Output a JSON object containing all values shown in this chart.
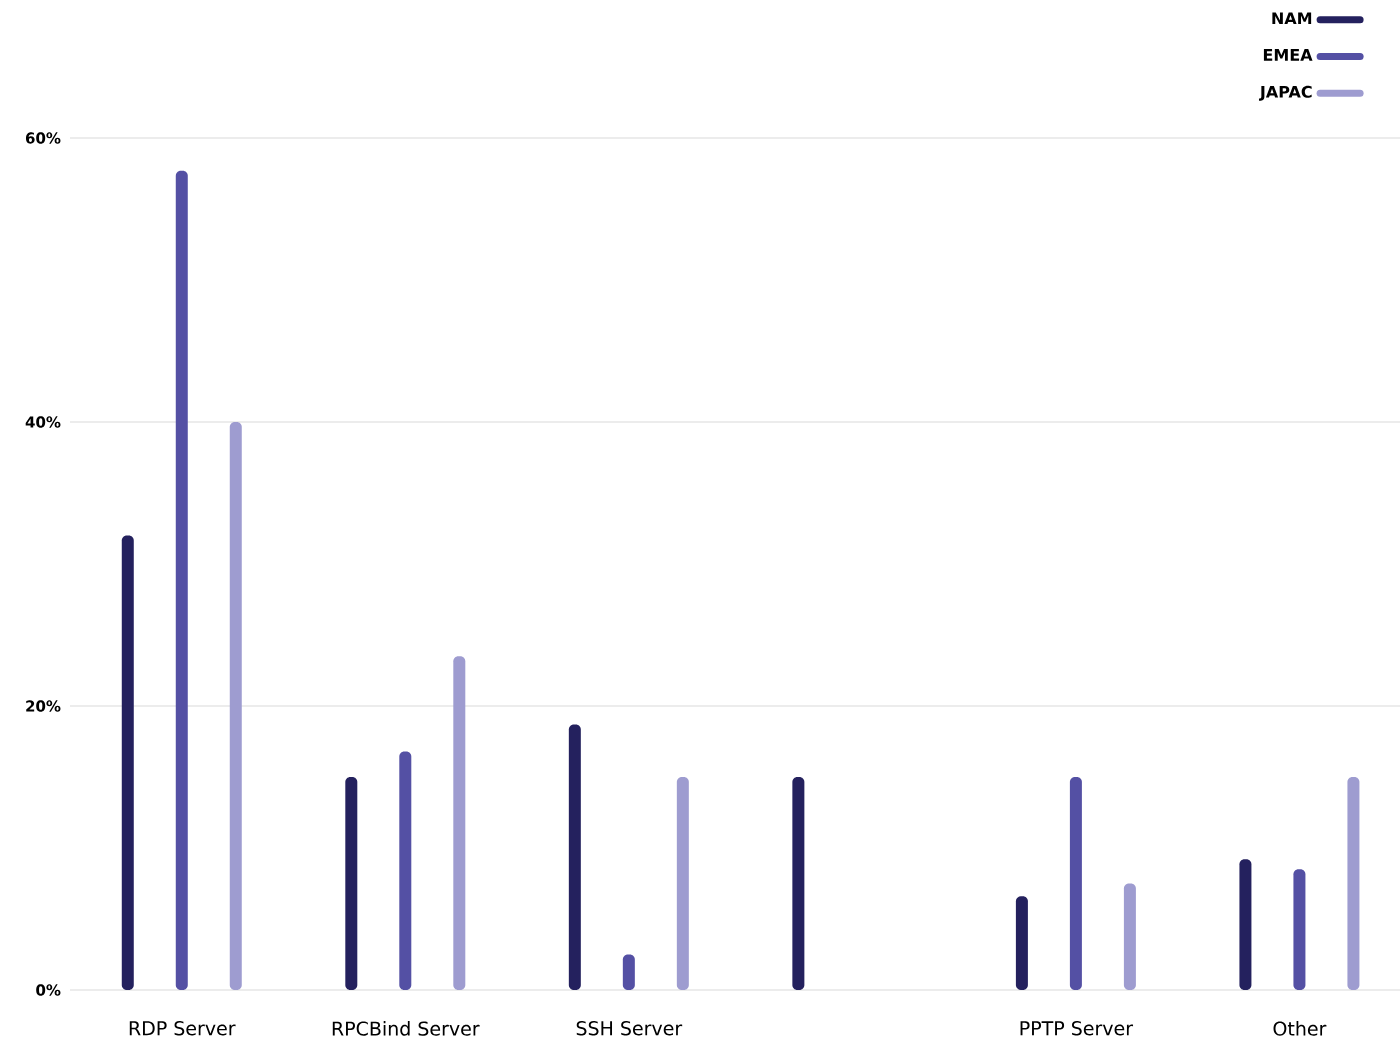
{
  "chart_data": {
    "type": "bar",
    "categories": [
      "RDP Server",
      "RPCBind Server",
      "SSH Server",
      null,
      "PPTP Server",
      "Other"
    ],
    "series": [
      {
        "name": "NAM",
        "color": "#24215e",
        "values": [
          32,
          15,
          18.7,
          15,
          6.6,
          9.2
        ]
      },
      {
        "name": "EMEA",
        "color": "#5450a4",
        "values": [
          57.7,
          16.8,
          2.5,
          null,
          15,
          8.5
        ]
      },
      {
        "name": "JAPAC",
        "color": "#9e9cd0",
        "values": [
          40,
          23.5,
          15,
          null,
          7.5,
          15
        ]
      }
    ],
    "ylim": [
      0,
      60
    ],
    "yticks": [
      {
        "value": 0,
        "label": "0%"
      },
      {
        "value": 20,
        "label": "20%"
      },
      {
        "value": 40,
        "label": "40%"
      },
      {
        "value": 60,
        "label": "60%"
      }
    ],
    "grid": "y",
    "legend": "top right",
    "marker": "none"
  }
}
